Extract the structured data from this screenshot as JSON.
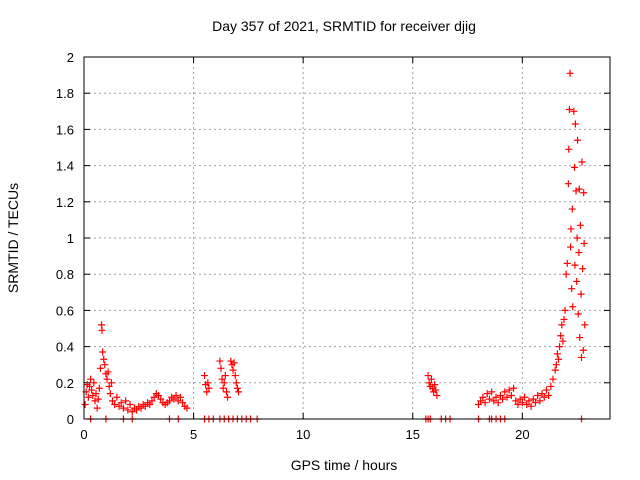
{
  "chart_data": {
    "type": "scatter",
    "title": "Day 357 of 2021, SRMTID for receiver djig",
    "xlabel": "GPS time / hours",
    "ylabel": "SRMTID / TECUs",
    "xlim": [
      0,
      24
    ],
    "ylim": [
      0,
      2
    ],
    "x_ticks": [
      0,
      5,
      10,
      15,
      20
    ],
    "x_tick_labels": [
      "0",
      "5",
      "10",
      "15",
      "20"
    ],
    "y_ticks": [
      0,
      0.2,
      0.4,
      0.6,
      0.8,
      1,
      1.2,
      1.4,
      1.6,
      1.8,
      2
    ],
    "y_tick_labels": [
      "0",
      "0.2",
      "0.4",
      "0.6",
      "0.8",
      "1",
      "1.2",
      "1.4",
      "1.6",
      "1.8",
      "2"
    ],
    "grid": true,
    "marker": "+",
    "color": "#ff0000",
    "series": [
      {
        "name": "SRMTID",
        "points": [
          [
            0.05,
            0.08
          ],
          [
            0.1,
            0.15
          ],
          [
            0.15,
            0.19
          ],
          [
            0.2,
            0.12
          ],
          [
            0.25,
            0.18
          ],
          [
            0.3,
            0.22
          ],
          [
            0.35,
            0.16
          ],
          [
            0.4,
            0.13
          ],
          [
            0.45,
            0.2
          ],
          [
            0.5,
            0.1
          ],
          [
            0.55,
            0.14
          ],
          [
            0.6,
            0.06
          ],
          [
            0.65,
            0.11
          ],
          [
            0.7,
            0.17
          ],
          [
            0.75,
            0.28
          ],
          [
            0.8,
            0.52
          ],
          [
            0.82,
            0.49
          ],
          [
            0.85,
            0.37
          ],
          [
            0.9,
            0.33
          ],
          [
            0.95,
            0.3
          ],
          [
            1.0,
            0.25
          ],
          [
            1.05,
            0.22
          ],
          [
            1.1,
            0.26
          ],
          [
            1.15,
            0.18
          ],
          [
            1.2,
            0.14
          ],
          [
            1.25,
            0.2
          ],
          [
            1.3,
            0.1
          ],
          [
            1.4,
            0.08
          ],
          [
            1.5,
            0.12
          ],
          [
            1.6,
            0.07
          ],
          [
            1.7,
            0.09
          ],
          [
            1.8,
            0.06
          ],
          [
            1.9,
            0.1
          ],
          [
            2.0,
            0.05
          ],
          [
            2.1,
            0.08
          ],
          [
            2.2,
            0.04
          ],
          [
            2.3,
            0.06
          ],
          [
            2.4,
            0.05
          ],
          [
            2.5,
            0.07
          ],
          [
            2.6,
            0.06
          ],
          [
            2.7,
            0.08
          ],
          [
            2.8,
            0.07
          ],
          [
            2.9,
            0.09
          ],
          [
            3.0,
            0.08
          ],
          [
            3.1,
            0.1
          ],
          [
            3.2,
            0.12
          ],
          [
            3.3,
            0.14
          ],
          [
            3.4,
            0.13
          ],
          [
            3.5,
            0.11
          ],
          [
            3.6,
            0.09
          ],
          [
            3.7,
            0.08
          ],
          [
            3.8,
            0.09
          ],
          [
            3.9,
            0.1
          ],
          [
            4.0,
            0.12
          ],
          [
            4.1,
            0.11
          ],
          [
            4.2,
            0.13
          ],
          [
            4.3,
            0.1
          ],
          [
            4.4,
            0.12
          ],
          [
            4.5,
            0.09
          ],
          [
            4.6,
            0.07
          ],
          [
            4.7,
            0.06
          ],
          [
            5.5,
            0.24
          ],
          [
            5.55,
            0.19
          ],
          [
            5.6,
            0.15
          ],
          [
            5.65,
            0.2
          ],
          [
            5.7,
            0.17
          ],
          [
            6.2,
            0.32
          ],
          [
            6.25,
            0.28
          ],
          [
            6.3,
            0.22
          ],
          [
            6.35,
            0.17
          ],
          [
            6.4,
            0.2
          ],
          [
            6.45,
            0.24
          ],
          [
            6.5,
            0.15
          ],
          [
            6.55,
            0.12
          ],
          [
            6.7,
            0.32
          ],
          [
            6.75,
            0.3
          ],
          [
            6.8,
            0.27
          ],
          [
            6.85,
            0.31
          ],
          [
            6.9,
            0.24
          ],
          [
            6.95,
            0.2
          ],
          [
            7.0,
            0.17
          ],
          [
            7.05,
            0.15
          ],
          [
            15.7,
            0.24
          ],
          [
            15.75,
            0.2
          ],
          [
            15.8,
            0.18
          ],
          [
            15.85,
            0.22
          ],
          [
            15.9,
            0.17
          ],
          [
            15.95,
            0.15
          ],
          [
            16.0,
            0.19
          ],
          [
            16.05,
            0.16
          ],
          [
            16.1,
            0.13
          ],
          [
            18.0,
            0.08
          ],
          [
            18.1,
            0.1
          ],
          [
            18.2,
            0.12
          ],
          [
            18.3,
            0.09
          ],
          [
            18.4,
            0.14
          ],
          [
            18.5,
            0.11
          ],
          [
            18.6,
            0.15
          ],
          [
            18.7,
            0.1
          ],
          [
            18.8,
            0.12
          ],
          [
            18.9,
            0.09
          ],
          [
            19.0,
            0.13
          ],
          [
            19.1,
            0.11
          ],
          [
            19.2,
            0.15
          ],
          [
            19.3,
            0.12
          ],
          [
            19.4,
            0.16
          ],
          [
            19.5,
            0.13
          ],
          [
            19.6,
            0.17
          ],
          [
            19.7,
            0.1
          ],
          [
            19.8,
            0.08
          ],
          [
            19.9,
            0.11
          ],
          [
            20.0,
            0.09
          ],
          [
            20.1,
            0.12
          ],
          [
            20.2,
            0.08
          ],
          [
            20.3,
            0.1
          ],
          [
            20.4,
            0.07
          ],
          [
            20.5,
            0.11
          ],
          [
            20.6,
            0.09
          ],
          [
            20.7,
            0.13
          ],
          [
            20.8,
            0.1
          ],
          [
            20.9,
            0.14
          ],
          [
            21.0,
            0.12
          ],
          [
            21.1,
            0.16
          ],
          [
            21.2,
            0.13
          ],
          [
            21.3,
            0.18
          ],
          [
            21.4,
            0.22
          ],
          [
            21.5,
            0.27
          ],
          [
            21.55,
            0.3
          ],
          [
            21.6,
            0.36
          ],
          [
            21.65,
            0.33
          ],
          [
            21.7,
            0.4
          ],
          [
            21.75,
            0.46
          ],
          [
            21.8,
            0.52
          ],
          [
            21.85,
            0.43
          ],
          [
            21.9,
            0.55
          ],
          [
            21.95,
            0.6
          ],
          [
            22.0,
            0.8
          ],
          [
            22.05,
            0.86
          ],
          [
            22.1,
            1.3
          ],
          [
            22.12,
            1.49
          ],
          [
            22.15,
            1.71
          ],
          [
            22.18,
            1.91
          ],
          [
            22.2,
            0.95
          ],
          [
            22.22,
            1.05
          ],
          [
            22.25,
            0.72
          ],
          [
            22.28,
            1.16
          ],
          [
            22.3,
            0.62
          ],
          [
            22.35,
            1.7
          ],
          [
            22.38,
            1.39
          ],
          [
            22.4,
            0.85
          ],
          [
            22.42,
            1.63
          ],
          [
            22.45,
            1.26
          ],
          [
            22.48,
            0.76
          ],
          [
            22.5,
            1.0
          ],
          [
            22.52,
            1.54
          ],
          [
            22.55,
            0.58
          ],
          [
            22.58,
            0.92
          ],
          [
            22.6,
            1.27
          ],
          [
            22.62,
            0.45
          ],
          [
            22.65,
            1.07
          ],
          [
            22.68,
            0.69
          ],
          [
            22.7,
            0.34
          ],
          [
            22.72,
            1.42
          ],
          [
            22.75,
            0.83
          ],
          [
            22.78,
            0.38
          ],
          [
            22.8,
            1.25
          ],
          [
            22.82,
            0.97
          ],
          [
            22.85,
            0.52
          ]
        ]
      }
    ],
    "zero_points_x": [
      0.3,
      1.0,
      1.8,
      2.2,
      3.9,
      4.3,
      5.5,
      5.7,
      5.9,
      6.2,
      6.4,
      6.6,
      6.8,
      7.0,
      7.2,
      7.4,
      7.6,
      7.9,
      15.6,
      15.7,
      15.8,
      16.3,
      16.5,
      16.7,
      18.0,
      18.5,
      18.6,
      18.8,
      19.0,
      19.2,
      22.7
    ]
  }
}
